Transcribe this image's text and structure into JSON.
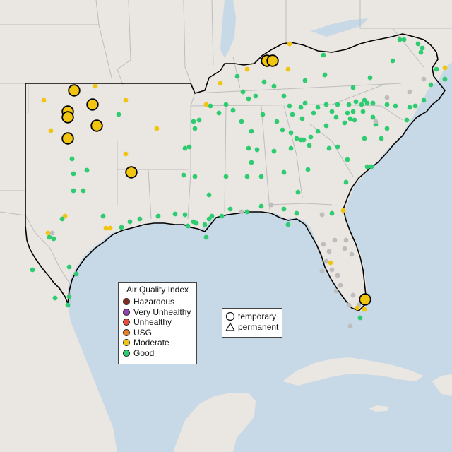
{
  "legend": {
    "title": "Air Quality Index",
    "items": [
      {
        "label": "Hazardous",
        "color": "#7e2b22"
      },
      {
        "label": "Very Unhealthy",
        "color": "#8e44ad"
      },
      {
        "label": "Unhealthy",
        "color": "#e74c3c"
      },
      {
        "label": "USG",
        "color": "#e67e22"
      },
      {
        "label": "Moderate",
        "color": "#f1c40f"
      },
      {
        "label": "Good",
        "color": "#2ecc71"
      }
    ]
  },
  "type_legend": {
    "items": [
      {
        "label": "temporary",
        "shape": "circle-icon"
      },
      {
        "label": "permanent",
        "shape": "triangle-icon"
      }
    ]
  },
  "colors": {
    "land": "#eae6e1",
    "water": "#c7d8e6",
    "border": "#bdbdbd",
    "region_outline": "#000000",
    "good": "#2ecc71",
    "moderate": "#f1c40f",
    "no_data": "#bdbdbd"
  }
}
